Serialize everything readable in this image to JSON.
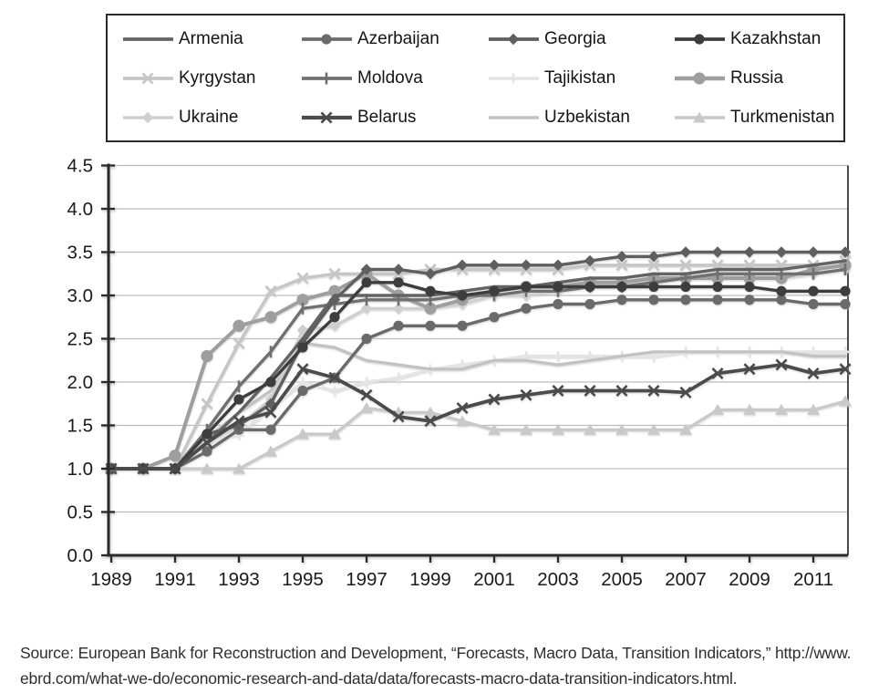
{
  "figure": {
    "source_line1": "Source: European Bank for Reconstruction and Development, “Forecasts, Macro Data, Transition Indicators,” http://www.",
    "source_line2": "ebrd.com/what-we-do/economic-research-and-data/data/forecasts-macro-data-transition-indicators.html."
  },
  "chart_data": {
    "type": "line",
    "title": "",
    "xlabel": "",
    "ylabel": "",
    "x": [
      1989,
      1990,
      1991,
      1992,
      1993,
      1994,
      1995,
      1996,
      1997,
      1998,
      1999,
      2000,
      2001,
      2002,
      2003,
      2004,
      2005,
      2006,
      2007,
      2008,
      2009,
      2010,
      2011,
      2012
    ],
    "x_tick_labels": [
      "1989",
      "1991",
      "1993",
      "1995",
      "1997",
      "1999",
      "2001",
      "2003",
      "2005",
      "2007",
      "2009",
      "2011"
    ],
    "x_tick_years": [
      1989,
      1991,
      1993,
      1995,
      1997,
      1999,
      2001,
      2003,
      2005,
      2007,
      2009,
      2011
    ],
    "y_tick_labels": [
      "0.0",
      "0.5",
      "1.0",
      "1.5",
      "2.0",
      "2.5",
      "3.0",
      "3.5",
      "4.0",
      "4.5"
    ],
    "y_ticks": [
      0,
      0.5,
      1,
      1.5,
      2,
      2.5,
      3,
      3.5,
      4,
      4.5
    ],
    "ylim": [
      0,
      4.5
    ],
    "xlim": [
      1989,
      2012
    ],
    "grid": "horizontal",
    "legend_position": "top",
    "axis_color": "#2b2b2b",
    "grid_color": "#bdbdbd",
    "series": [
      {
        "name": "Armenia",
        "color": "#636363",
        "marker": "none",
        "line_width": 3.4,
        "values": [
          1.0,
          1.0,
          1.0,
          1.3,
          1.65,
          2.05,
          2.5,
          3.0,
          3.0,
          3.0,
          3.0,
          3.05,
          3.1,
          3.1,
          3.15,
          3.2,
          3.2,
          3.25,
          3.25,
          3.3,
          3.3,
          3.3,
          3.35,
          3.4
        ]
      },
      {
        "name": "Azerbaijan",
        "color": "#6b6b6b",
        "marker": "circle",
        "line_width": 3.4,
        "values": [
          1.0,
          1.0,
          1.0,
          1.2,
          1.45,
          1.45,
          1.9,
          2.05,
          2.5,
          2.65,
          2.65,
          2.65,
          2.75,
          2.85,
          2.9,
          2.9,
          2.95,
          2.95,
          2.95,
          2.95,
          2.95,
          2.95,
          2.9,
          2.9
        ]
      },
      {
        "name": "Georgia",
        "color": "#5f5f5f",
        "marker": "diamond",
        "line_width": 3.4,
        "values": [
          1.0,
          1.0,
          1.0,
          1.4,
          1.5,
          1.75,
          2.45,
          2.95,
          3.3,
          3.3,
          3.25,
          3.35,
          3.35,
          3.35,
          3.35,
          3.4,
          3.45,
          3.45,
          3.5,
          3.5,
          3.5,
          3.5,
          3.5,
          3.5
        ]
      },
      {
        "name": "Kazakhstan",
        "color": "#3d3d3d",
        "marker": "circle",
        "line_width": 3.4,
        "values": [
          1.0,
          1.0,
          1.0,
          1.4,
          1.8,
          2.0,
          2.4,
          2.75,
          3.15,
          3.15,
          3.05,
          3.0,
          3.05,
          3.1,
          3.1,
          3.1,
          3.1,
          3.1,
          3.1,
          3.1,
          3.1,
          3.05,
          3.05,
          3.05
        ]
      },
      {
        "name": "Kyrgystan",
        "color": "#c6c6c6",
        "marker": "x",
        "line_width": 3.4,
        "values": [
          1.0,
          1.0,
          1.0,
          1.75,
          2.45,
          3.05,
          3.2,
          3.25,
          3.25,
          3.25,
          3.3,
          3.3,
          3.3,
          3.3,
          3.3,
          3.35,
          3.35,
          3.35,
          3.35,
          3.35,
          3.35,
          3.35,
          3.35,
          3.4
        ]
      },
      {
        "name": "Moldova",
        "color": "#707070",
        "marker": "tick",
        "line_width": 3.4,
        "values": [
          1.0,
          1.0,
          1.0,
          1.45,
          1.95,
          2.35,
          2.85,
          2.9,
          2.95,
          2.95,
          2.95,
          3.0,
          3.0,
          3.05,
          3.05,
          3.1,
          3.1,
          3.15,
          3.2,
          3.25,
          3.25,
          3.25,
          3.25,
          3.3
        ]
      },
      {
        "name": "Tajikistan",
        "color": "#e4e4e4",
        "marker": "plus",
        "line_width": 3.2,
        "values": [
          1.0,
          1.0,
          1.0,
          1.3,
          1.4,
          1.7,
          2.0,
          1.9,
          2.0,
          2.05,
          2.15,
          2.2,
          2.25,
          2.3,
          2.3,
          2.3,
          2.3,
          2.3,
          2.35,
          2.35,
          2.35,
          2.35,
          2.35,
          2.35
        ]
      },
      {
        "name": "Russia",
        "color": "#9e9e9e",
        "marker": "circle-lg",
        "line_width": 4,
        "values": [
          1.0,
          1.0,
          1.15,
          2.3,
          2.65,
          2.75,
          2.95,
          3.05,
          3.25,
          3.0,
          2.85,
          2.95,
          3.05,
          3.1,
          3.1,
          3.15,
          3.15,
          3.2,
          3.2,
          3.2,
          3.2,
          3.2,
          3.3,
          3.35
        ]
      },
      {
        "name": "Ukraine",
        "color": "#cfcfcf",
        "marker": "diamond",
        "line_width": 3.2,
        "values": [
          1.0,
          1.0,
          1.0,
          1.3,
          1.5,
          1.8,
          2.6,
          2.65,
          2.85,
          2.85,
          2.85,
          2.9,
          3.0,
          3.0,
          3.05,
          3.1,
          3.15,
          3.15,
          3.2,
          3.2,
          3.2,
          3.2,
          3.25,
          3.3
        ]
      },
      {
        "name": "Belarus",
        "color": "#4b4b4b",
        "marker": "x",
        "line_width": 3.8,
        "values": [
          1.0,
          1.0,
          1.0,
          1.3,
          1.55,
          1.65,
          2.15,
          2.05,
          1.85,
          1.6,
          1.55,
          1.7,
          1.8,
          1.85,
          1.9,
          1.9,
          1.9,
          1.9,
          1.88,
          2.1,
          2.15,
          2.2,
          2.1,
          2.15
        ]
      },
      {
        "name": "Uzbekistan",
        "color": "#c2c2c2",
        "marker": "none",
        "line_width": 3.2,
        "values": [
          1.0,
          1.0,
          1.0,
          1.35,
          1.65,
          1.9,
          2.45,
          2.4,
          2.25,
          2.2,
          2.15,
          2.15,
          2.25,
          2.25,
          2.2,
          2.25,
          2.3,
          2.35,
          2.35,
          2.35,
          2.35,
          2.35,
          2.3,
          2.3
        ]
      },
      {
        "name": "Turkmenistan",
        "color": "#c9c9c9",
        "marker": "triangle",
        "line_width": 3.2,
        "values": [
          1.0,
          1.0,
          1.0,
          1.0,
          1.0,
          1.2,
          1.4,
          1.4,
          1.7,
          1.65,
          1.65,
          1.55,
          1.45,
          1.45,
          1.45,
          1.45,
          1.45,
          1.45,
          1.45,
          1.68,
          1.68,
          1.68,
          1.68,
          1.78
        ]
      }
    ]
  }
}
